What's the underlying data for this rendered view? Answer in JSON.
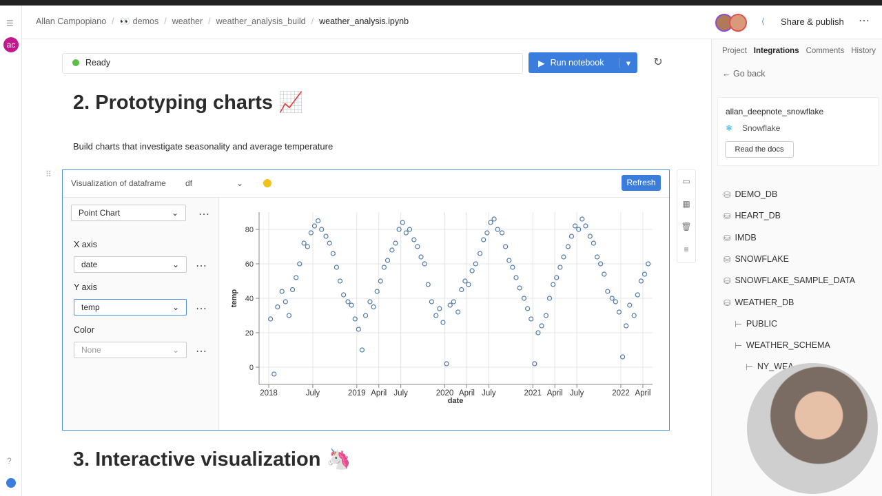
{
  "breadcrumbs": [
    "Allan Campopiano",
    "👀 demos",
    "weather",
    "weather_analysis_build",
    "weather_analysis.ipynb"
  ],
  "avatar": "ac",
  "share": "Share & publish",
  "status": "Ready",
  "run_button": "Run notebook",
  "heading_1": "2. Prototyping charts 📈",
  "paragraph": "Build charts that investigate seasonality and average temperature",
  "block": {
    "title": "Visualization of dataframe",
    "dataframe": "df",
    "refresh": "Refresh",
    "chart_kind": "Point Chart",
    "x_axis_label": "X axis",
    "x_axis_value": "date",
    "y_axis_label": "Y axis",
    "y_axis_value": "temp",
    "color_label": "Color",
    "color_value": "None"
  },
  "heading_2": "3. Interactive visualization 🦄",
  "sidebar": {
    "tabs": [
      "Project",
      "Integrations",
      "Comments",
      "History"
    ],
    "back": "← Go back",
    "integration_name": "allan_deepnote_snowflake",
    "integration_type": "Snowflake",
    "docs": "Read the docs",
    "tree": [
      "DEMO_DB",
      "HEART_DB",
      "IMDB",
      "SNOWFLAKE",
      "SNOWFLAKE_SAMPLE_DATA",
      "WEATHER_DB",
      "PUBLIC",
      "WEATHER_SCHEMA",
      "NY_WEA"
    ]
  },
  "chart_data": {
    "type": "scatter",
    "x_label": "date",
    "y_label": "temp",
    "color": "#4c78a8",
    "grid": true,
    "xlim": [
      2017.89,
      2022.36
    ],
    "ylim": [
      -10,
      90
    ],
    "xticks": [
      {
        "value": 2018,
        "label": "2018"
      },
      {
        "value": 2018.5,
        "label": "July"
      },
      {
        "value": 2019,
        "label": "2019"
      },
      {
        "value": 2019.25,
        "label": "April"
      },
      {
        "value": 2019.5,
        "label": "July"
      },
      {
        "value": 2020,
        "label": "2020"
      },
      {
        "value": 2020.25,
        "label": "April"
      },
      {
        "value": 2020.5,
        "label": "July"
      },
      {
        "value": 2021,
        "label": "2021"
      },
      {
        "value": 2021.25,
        "label": "April"
      },
      {
        "value": 2021.5,
        "label": "July"
      },
      {
        "value": 2022,
        "label": "2022"
      },
      {
        "value": 2022.25,
        "label": "April"
      }
    ],
    "yticks": [
      0,
      20,
      40,
      60,
      80
    ],
    "x": [
      2018.02,
      2018.06,
      2018.1,
      2018.15,
      2018.19,
      2018.23,
      2018.27,
      2018.31,
      2018.35,
      2018.4,
      2018.44,
      2018.48,
      2018.52,
      2018.56,
      2018.6,
      2018.65,
      2018.69,
      2018.73,
      2018.77,
      2018.81,
      2018.85,
      2018.9,
      2018.94,
      2018.98,
      2019.02,
      2019.06,
      2019.1,
      2019.15,
      2019.19,
      2019.23,
      2019.27,
      2019.31,
      2019.35,
      2019.4,
      2019.44,
      2019.48,
      2019.52,
      2019.56,
      2019.6,
      2019.65,
      2019.69,
      2019.73,
      2019.77,
      2019.81,
      2019.85,
      2019.9,
      2019.94,
      2019.98,
      2020.02,
      2020.06,
      2020.1,
      2020.15,
      2020.19,
      2020.23,
      2020.27,
      2020.31,
      2020.35,
      2020.4,
      2020.44,
      2020.48,
      2020.52,
      2020.56,
      2020.6,
      2020.65,
      2020.69,
      2020.73,
      2020.77,
      2020.81,
      2020.85,
      2020.9,
      2020.94,
      2020.98,
      2021.02,
      2021.06,
      2021.1,
      2021.15,
      2021.19,
      2021.23,
      2021.27,
      2021.31,
      2021.35,
      2021.4,
      2021.44,
      2021.48,
      2021.52,
      2021.56,
      2021.6,
      2021.65,
      2021.69,
      2021.73,
      2021.77,
      2021.81,
      2021.85,
      2021.9,
      2021.94,
      2021.98,
      2022.02,
      2022.06,
      2022.1,
      2022.15,
      2022.19,
      2022.23,
      2022.27,
      2022.31
    ],
    "values": [
      28,
      -4,
      35,
      44,
      38,
      30,
      45,
      52,
      60,
      72,
      70,
      78,
      82,
      85,
      80,
      76,
      72,
      66,
      58,
      50,
      42,
      38,
      36,
      28,
      22,
      10,
      30,
      38,
      35,
      44,
      50,
      58,
      62,
      68,
      72,
      80,
      84,
      78,
      80,
      74,
      70,
      64,
      60,
      48,
      38,
      30,
      34,
      26,
      2,
      36,
      38,
      32,
      45,
      50,
      48,
      56,
      60,
      66,
      74,
      78,
      84,
      86,
      80,
      78,
      70,
      62,
      58,
      52,
      46,
      40,
      34,
      28,
      2,
      20,
      24,
      30,
      40,
      48,
      52,
      58,
      64,
      70,
      76,
      82,
      80,
      86,
      82,
      76,
      72,
      64,
      60,
      54,
      44,
      40,
      38,
      32,
      6,
      24,
      36,
      30,
      42,
      50,
      54,
      60
    ]
  }
}
